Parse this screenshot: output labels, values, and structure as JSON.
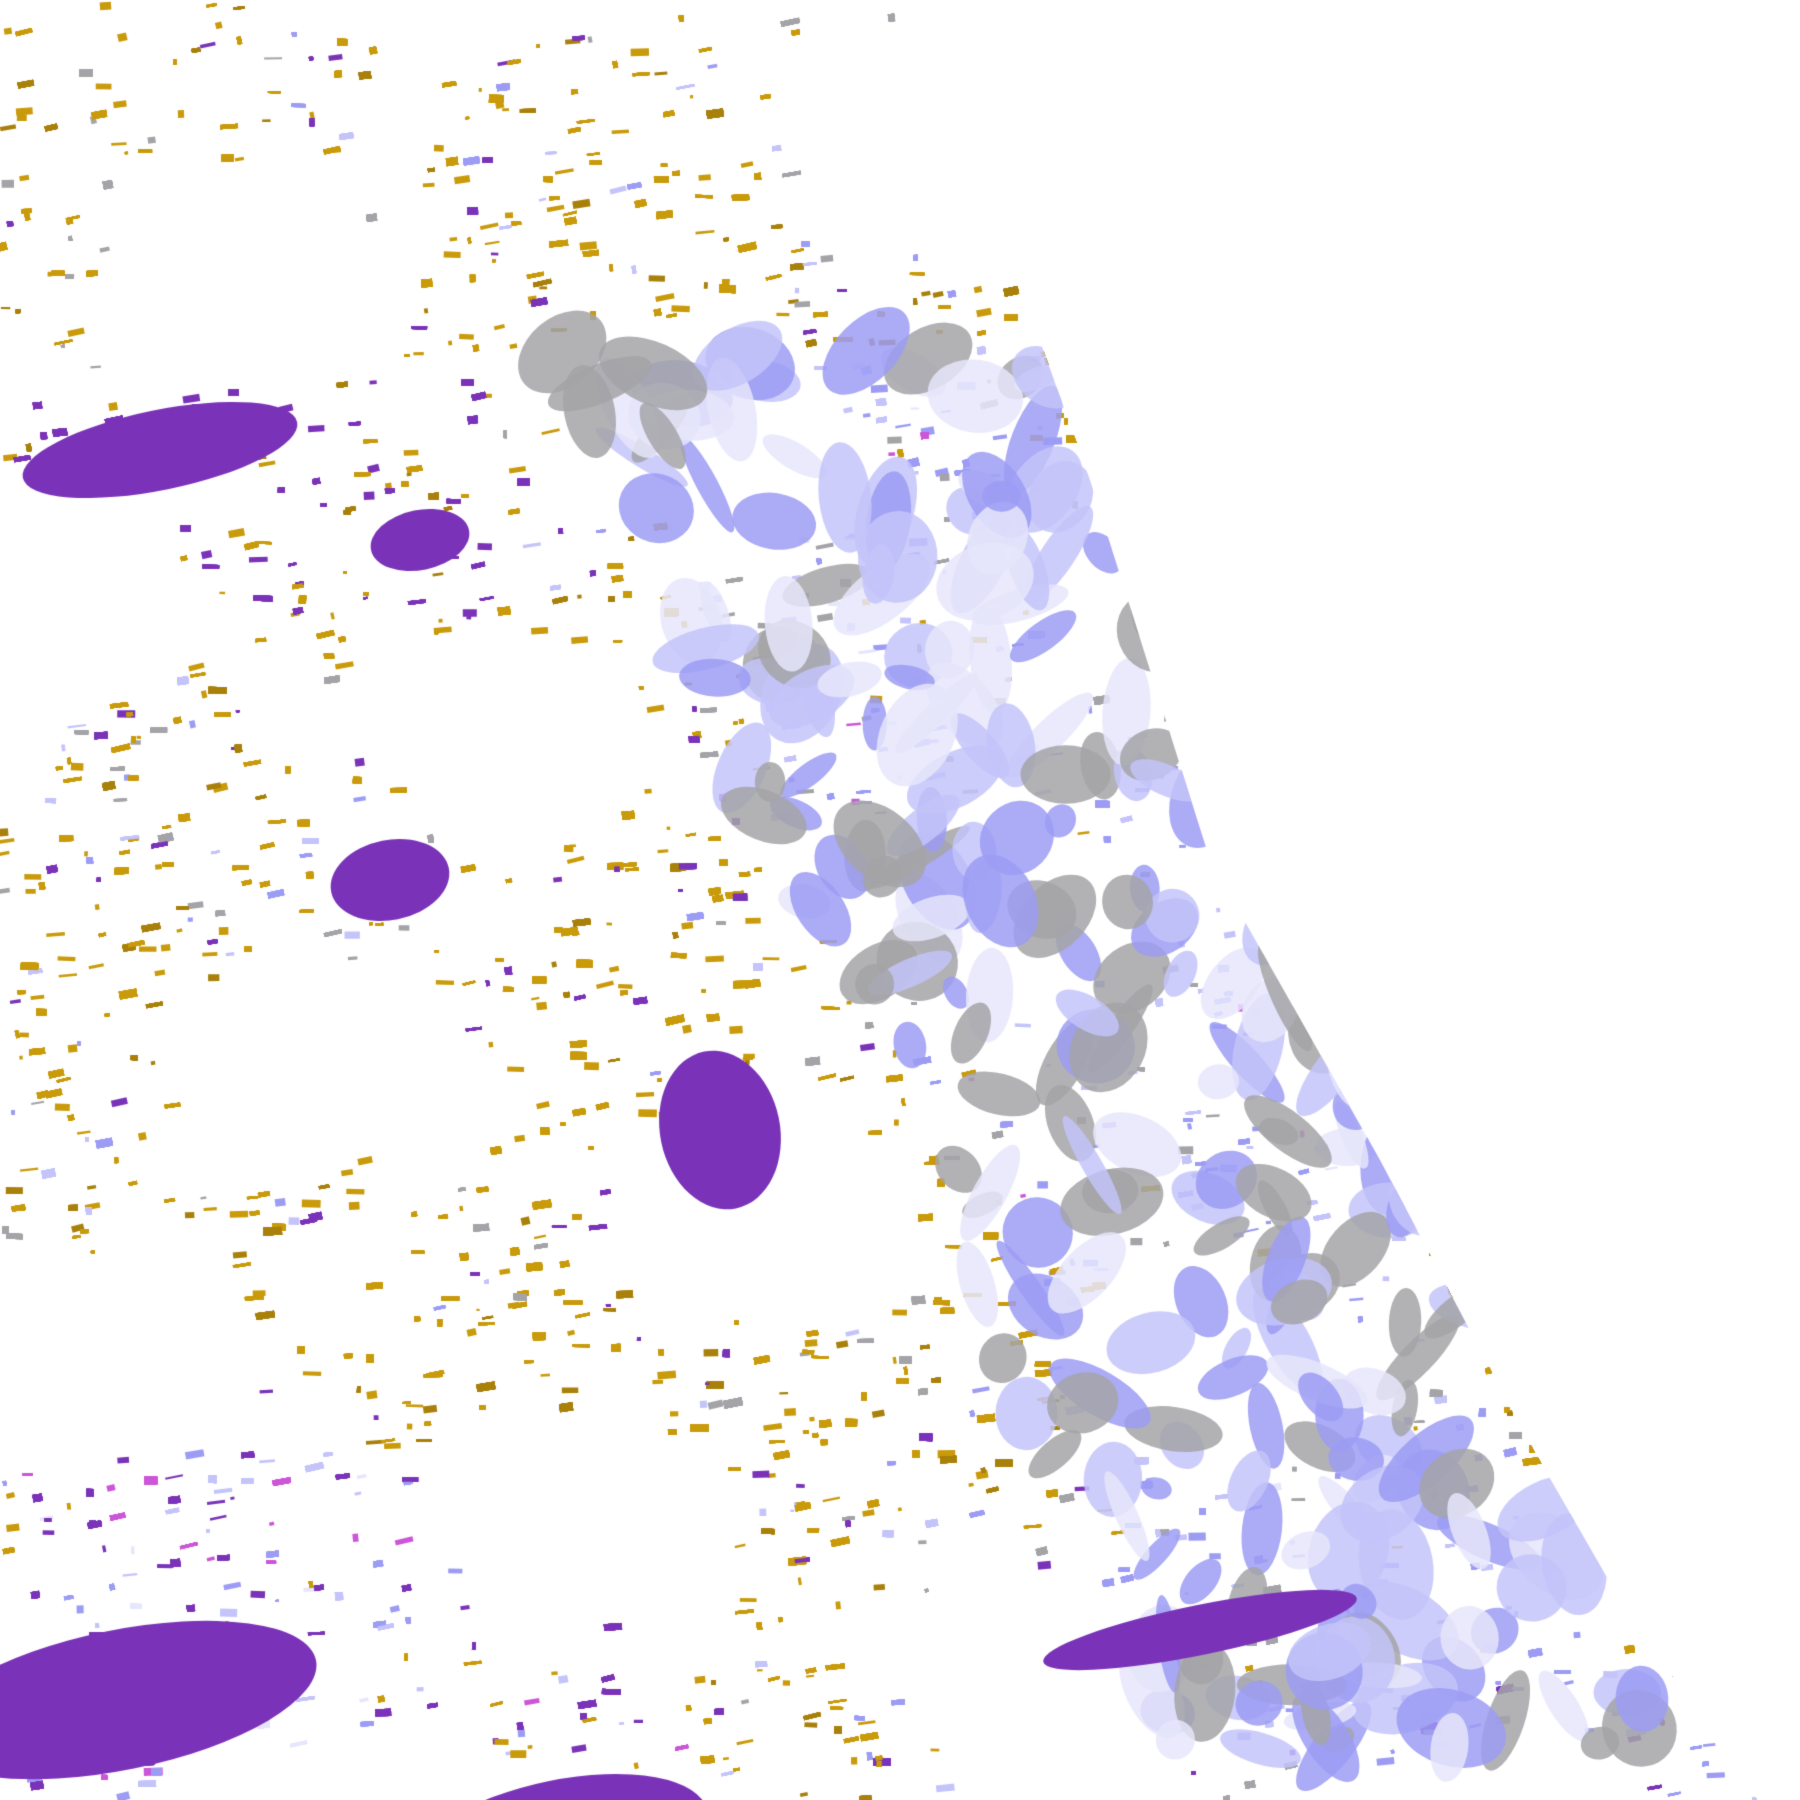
{
  "map": {
    "type": "satellite cloud classification swath",
    "background": "#ffffff",
    "colors": {
      "gold": "#c99a0a",
      "dark_gold": "#a8800a",
      "purple": "#7a33b8",
      "magenta": "#cc55d8",
      "lavender": "#9c9cf4",
      "light_lavender": "#c4c4fa",
      "pale": "#e6e6fc",
      "gray": "#a4a4a8"
    }
  }
}
